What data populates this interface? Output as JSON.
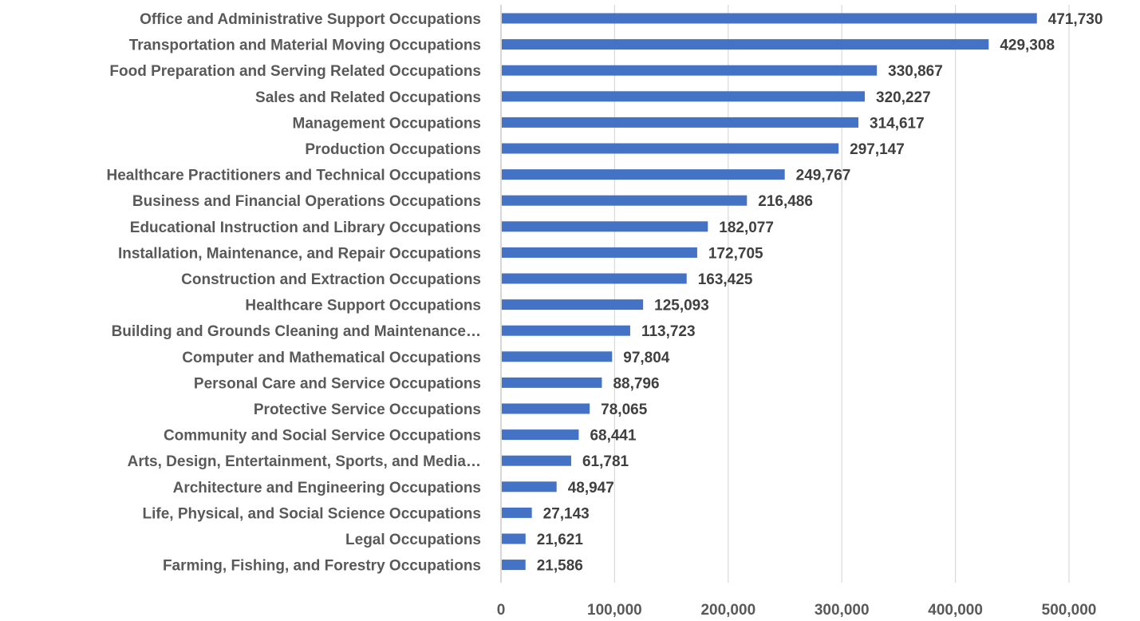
{
  "chart_data": {
    "type": "bar",
    "orientation": "horizontal",
    "title": "",
    "xlabel": "",
    "ylabel": "",
    "xlim": [
      0,
      500000
    ],
    "x_ticks": [
      0,
      100000,
      200000,
      300000,
      400000,
      500000
    ],
    "x_tick_labels": [
      "0",
      "100,000",
      "200,000",
      "300,000",
      "400,000",
      "500,000"
    ],
    "grid": "vertical",
    "legend": "none",
    "bar_color": "#4472c4",
    "categories": [
      "Office and Administrative Support Occupations",
      "Transportation and Material Moving Occupations",
      "Food Preparation and Serving Related Occupations",
      "Sales and Related Occupations",
      "Management Occupations",
      "Production Occupations",
      "Healthcare Practitioners and Technical Occupations",
      "Business and Financial Operations Occupations",
      "Educational Instruction and Library Occupations",
      "Installation, Maintenance, and Repair Occupations",
      "Construction and Extraction Occupations",
      "Healthcare Support Occupations",
      "Building and Grounds Cleaning and Maintenance…",
      "Computer and Mathematical Occupations",
      "Personal Care and Service Occupations",
      "Protective Service Occupations",
      "Community and Social Service Occupations",
      "Arts, Design, Entertainment, Sports, and Media…",
      "Architecture and Engineering Occupations",
      "Life, Physical, and Social Science Occupations",
      "Legal Occupations",
      "Farming, Fishing, and Forestry Occupations"
    ],
    "values": [
      471730,
      429308,
      330867,
      320227,
      314617,
      297147,
      249767,
      216486,
      182077,
      172705,
      163425,
      125093,
      113723,
      97804,
      88796,
      78065,
      68441,
      61781,
      48947,
      27143,
      21621,
      21586
    ],
    "value_labels": [
      "471,730",
      "429,308",
      "330,867",
      "320,227",
      "314,617",
      "297,147",
      "249,767",
      "216,486",
      "182,077",
      "172,705",
      "163,425",
      "125,093",
      "113,723",
      "97,804",
      "88,796",
      "78,065",
      "68,441",
      "61,781",
      "48,947",
      "27,143",
      "21,621",
      "21,586"
    ]
  }
}
